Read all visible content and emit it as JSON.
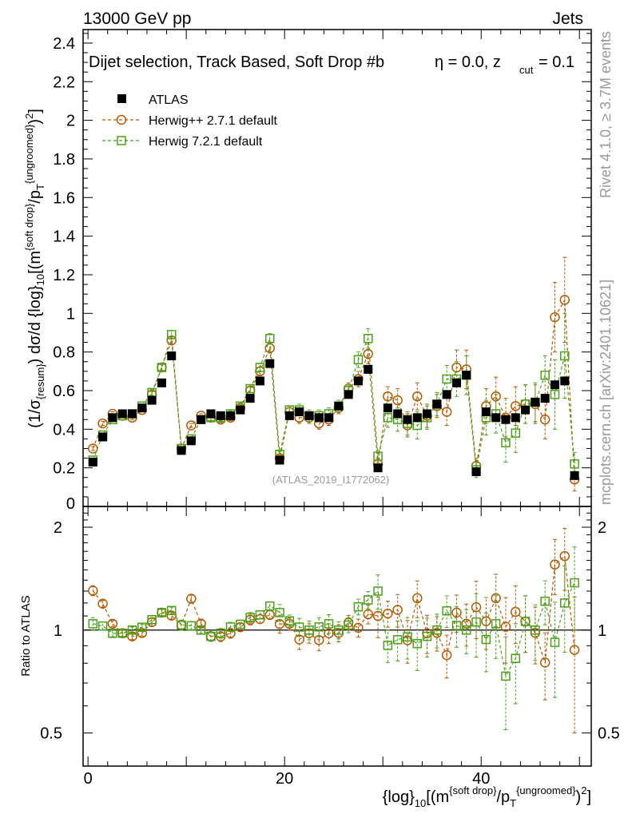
{
  "header": {
    "left": "13000 GeV pp",
    "right": "Jets"
  },
  "side_labels": {
    "rivet": "Rivet 4.1.0, ≥ 3.7M events",
    "mcplots": "mcplots.cern.ch [arXiv:2401.10621]"
  },
  "chart_data": {
    "type": "scatter",
    "title_main": "Dijet selection, Track Based, Soft Drop #b",
    "title_eta": "η = 0.0, z",
    "title_sub": "cut",
    "title_val": " = 0.1",
    "watermark": "(ATLAS_2019_I1772062)",
    "legend_position": "top-left",
    "ylabel": "(1/σ{resum}) dσ/d {log}10[(m{soft drop}/pT{ungroomed})2]",
    "ylabel_parts": {
      "a": "(1/σ",
      "a_sub": "{resum}",
      "b": ") dσ/d {log}",
      "b_sub": "10",
      "c": "[(m",
      "c_sup": "{soft drop}",
      "d": "/p",
      "d_sub": "T",
      "d_sup": "{ungroomed}",
      "e": ")",
      "e_sup": "2",
      "f": "]"
    },
    "ratio_ylabel": "Ratio to ATLAS",
    "xlabel": "{log}10[(m{soft drop}/pT{ungroomed})2]",
    "xlabel_parts": {
      "a": "{log}",
      "a_sub": "10",
      "b": "[(m",
      "b_sup": "{soft drop}",
      "c": "/p",
      "c_sub": "T",
      "c_sup": "{ungroomed}",
      "d": ")",
      "d_sup": "2",
      "e": "]"
    },
    "xlim": [
      -0.5,
      51.2
    ],
    "ylim": [
      0,
      2.47
    ],
    "ratio_ylim": [
      0.4,
      2.3
    ],
    "x_ticks": [
      0,
      20,
      40
    ],
    "y_ticks": [
      0.2,
      0.4,
      0.6,
      0.8,
      1,
      1.2,
      1.4,
      1.6,
      1.8,
      2,
      2.2,
      2.4
    ],
    "y_tick_labels": [
      "0.2",
      "0.4",
      "0.6",
      "0.8",
      "1",
      "1.2",
      "1.4",
      "1.6",
      "1.8",
      "2",
      "2.2",
      "2.4"
    ],
    "y_zero_label": "0",
    "ratio_y_ticks": [
      0.5,
      1,
      2
    ],
    "ratio_y_tick_labels": [
      "0.5",
      "1",
      "2"
    ],
    "series": [
      {
        "name": "ATLAS",
        "color": "#000000",
        "marker": "filled-square",
        "x": [
          0.5,
          1.5,
          2.5,
          3.5,
          4.5,
          5.5,
          6.5,
          7.5,
          8.5,
          9.5,
          10.5,
          11.5,
          12.5,
          13.5,
          14.5,
          15.5,
          16.5,
          17.5,
          18.5,
          19.5,
          20.5,
          21.5,
          22.5,
          23.5,
          24.5,
          25.5,
          26.5,
          27.5,
          28.5,
          29.5,
          30.5,
          31.5,
          32.5,
          33.5,
          34.5,
          35.5,
          36.5,
          37.5,
          38.5,
          39.5,
          40.5,
          41.5,
          42.5,
          43.5,
          44.5,
          45.5,
          46.5,
          47.5,
          48.5,
          49.5
        ],
        "values": [
          0.23,
          0.36,
          0.46,
          0.48,
          0.48,
          0.51,
          0.55,
          0.64,
          0.78,
          0.29,
          0.34,
          0.45,
          0.48,
          0.47,
          0.47,
          0.5,
          0.56,
          0.65,
          0.74,
          0.24,
          0.47,
          0.49,
          0.47,
          0.46,
          0.46,
          0.52,
          0.58,
          0.65,
          0.71,
          0.2,
          0.51,
          0.48,
          0.45,
          0.46,
          0.48,
          0.53,
          0.58,
          0.64,
          0.68,
          0.18,
          0.49,
          0.46,
          0.45,
          0.46,
          0.5,
          0.54,
          0.56,
          0.63,
          0.65,
          0.16
        ],
        "errors": [
          0.015,
          0.015,
          0.015,
          0.015,
          0.015,
          0.015,
          0.015,
          0.015,
          0.02,
          0.015,
          0.015,
          0.015,
          0.015,
          0.015,
          0.015,
          0.015,
          0.015,
          0.015,
          0.02,
          0.015,
          0.015,
          0.015,
          0.015,
          0.015,
          0.015,
          0.015,
          0.015,
          0.015,
          0.02,
          0.015,
          0.02,
          0.02,
          0.02,
          0.02,
          0.02,
          0.02,
          0.02,
          0.03,
          0.03,
          0.02,
          0.03,
          0.03,
          0.03,
          0.03,
          0.03,
          0.04,
          0.04,
          0.04,
          0.04,
          0.03
        ]
      },
      {
        "name": "Herwig++ 2.7.1 default",
        "color": "#b35900",
        "marker": "open-circle",
        "x": [
          0.5,
          1.5,
          2.5,
          3.5,
          4.5,
          5.5,
          6.5,
          7.5,
          8.5,
          9.5,
          10.5,
          11.5,
          12.5,
          13.5,
          14.5,
          15.5,
          16.5,
          17.5,
          18.5,
          19.5,
          20.5,
          21.5,
          22.5,
          23.5,
          24.5,
          25.5,
          26.5,
          27.5,
          28.5,
          29.5,
          30.5,
          31.5,
          32.5,
          33.5,
          34.5,
          35.5,
          36.5,
          37.5,
          38.5,
          39.5,
          40.5,
          41.5,
          42.5,
          43.5,
          44.5,
          45.5,
          46.5,
          47.5,
          48.5,
          49.5
        ],
        "values": [
          0.3,
          0.43,
          0.48,
          0.47,
          0.46,
          0.5,
          0.58,
          0.72,
          0.86,
          0.3,
          0.42,
          0.47,
          0.46,
          0.45,
          0.46,
          0.51,
          0.6,
          0.7,
          0.82,
          0.25,
          0.49,
          0.46,
          0.46,
          0.43,
          0.45,
          0.51,
          0.61,
          0.66,
          0.79,
          0.22,
          0.57,
          0.55,
          0.42,
          0.57,
          0.47,
          0.52,
          0.49,
          0.72,
          0.71,
          0.21,
          0.52,
          0.57,
          0.46,
          0.52,
          0.53,
          0.53,
          0.45,
          0.98,
          1.07,
          0.14
        ],
        "errors": [
          0.01,
          0.01,
          0.01,
          0.01,
          0.01,
          0.01,
          0.015,
          0.015,
          0.02,
          0.01,
          0.01,
          0.01,
          0.015,
          0.015,
          0.015,
          0.015,
          0.02,
          0.02,
          0.025,
          0.015,
          0.02,
          0.03,
          0.03,
          0.03,
          0.03,
          0.03,
          0.03,
          0.04,
          0.05,
          0.03,
          0.05,
          0.06,
          0.06,
          0.07,
          0.06,
          0.06,
          0.07,
          0.09,
          0.1,
          0.04,
          0.09,
          0.1,
          0.1,
          0.1,
          0.1,
          0.1,
          0.1,
          0.18,
          0.22,
          0.06
        ]
      },
      {
        "name": "Herwig 7.2.1 default",
        "color": "#4aa019",
        "marker": "open-square",
        "x": [
          0.5,
          1.5,
          2.5,
          3.5,
          4.5,
          5.5,
          6.5,
          7.5,
          8.5,
          9.5,
          10.5,
          11.5,
          12.5,
          13.5,
          14.5,
          15.5,
          16.5,
          17.5,
          18.5,
          19.5,
          20.5,
          21.5,
          22.5,
          23.5,
          24.5,
          25.5,
          26.5,
          27.5,
          28.5,
          29.5,
          30.5,
          31.5,
          32.5,
          33.5,
          34.5,
          35.5,
          36.5,
          37.5,
          38.5,
          39.5,
          40.5,
          41.5,
          42.5,
          43.5,
          44.5,
          45.5,
          46.5,
          47.5,
          48.5,
          49.5
        ],
        "values": [
          0.24,
          0.37,
          0.45,
          0.47,
          0.48,
          0.52,
          0.59,
          0.72,
          0.89,
          0.3,
          0.35,
          0.45,
          0.46,
          0.46,
          0.48,
          0.52,
          0.61,
          0.72,
          0.87,
          0.27,
          0.5,
          0.5,
          0.47,
          0.47,
          0.48,
          0.52,
          0.6,
          0.76,
          0.87,
          0.26,
          0.46,
          0.45,
          0.43,
          0.42,
          0.46,
          0.53,
          0.66,
          0.66,
          0.68,
          0.19,
          0.46,
          0.48,
          0.33,
          0.38,
          0.53,
          0.54,
          0.68,
          0.58,
          0.78,
          0.22
        ],
        "errors": [
          0.01,
          0.01,
          0.01,
          0.01,
          0.01,
          0.01,
          0.015,
          0.015,
          0.02,
          0.01,
          0.01,
          0.01,
          0.015,
          0.015,
          0.015,
          0.015,
          0.02,
          0.02,
          0.025,
          0.015,
          0.02,
          0.03,
          0.03,
          0.03,
          0.03,
          0.03,
          0.03,
          0.04,
          0.05,
          0.03,
          0.05,
          0.06,
          0.06,
          0.07,
          0.06,
          0.06,
          0.07,
          0.09,
          0.1,
          0.04,
          0.09,
          0.1,
          0.1,
          0.1,
          0.1,
          0.1,
          0.1,
          0.18,
          0.22,
          0.06
        ]
      }
    ]
  }
}
